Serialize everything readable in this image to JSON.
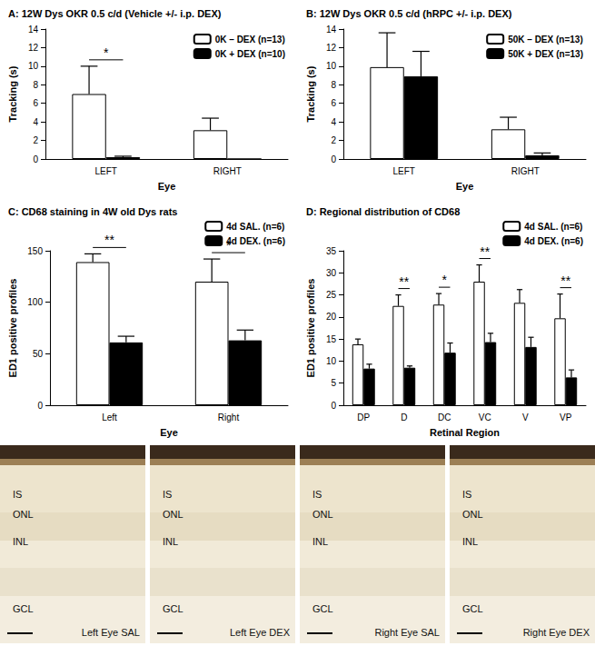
{
  "chart_data": [
    {
      "type": "bar",
      "title": "A: 12W Dys OKR 0.5 c/d (Vehicle +/- i.p. DEX)",
      "xlabel": "Eye",
      "ylabel": "Tracking (s)",
      "categories": [
        "LEFT",
        "RIGHT"
      ],
      "series": [
        {
          "name": "0K – DEX (n=13)",
          "color": "#ffffff",
          "values": [
            7.0,
            3.1
          ],
          "errors": [
            3.0,
            1.3
          ]
        },
        {
          "name": "0K + DEX (n=10)",
          "color": "#000000",
          "values": [
            0.2,
            0
          ],
          "errors": [
            0.1,
            0
          ]
        }
      ],
      "ylim": [
        0,
        14
      ],
      "yticks": [
        0,
        2,
        4,
        6,
        8,
        10,
        12,
        14
      ],
      "grid": false,
      "legend": "top-right",
      "annotations": [
        {
          "category": "LEFT",
          "text": "*"
        }
      ]
    },
    {
      "type": "bar",
      "title": "B: 12W Dys OKR 0.5 c/d (hRPC +/- i.p. DEX)",
      "xlabel": "Eye",
      "ylabel": "Tracking (s)",
      "categories": [
        "LEFT",
        "RIGHT"
      ],
      "series": [
        {
          "name": "50K – DEX (n=13)",
          "color": "#ffffff",
          "values": [
            9.9,
            3.2
          ],
          "errors": [
            3.7,
            1.3
          ]
        },
        {
          "name": "50K + DEX (n=13)",
          "color": "#000000",
          "values": [
            8.9,
            0.4
          ],
          "errors": [
            2.7,
            0.25
          ]
        }
      ],
      "ylim": [
        0,
        14
      ],
      "yticks": [
        0,
        2,
        4,
        6,
        8,
        10,
        12,
        14
      ],
      "grid": false,
      "legend": "top-right",
      "annotations": []
    },
    {
      "type": "bar",
      "title": "C: CD68 staining in 4W old Dys rats",
      "xlabel": "Eye",
      "ylabel": "ED1 positive profiles",
      "categories": [
        "Left",
        "Right"
      ],
      "series": [
        {
          "name": "4d SAL. (n=6)",
          "color": "#ffffff",
          "values": [
            139,
            120
          ],
          "errors": [
            8,
            22
          ]
        },
        {
          "name": "4d DEX. (n=6)",
          "color": "#000000",
          "values": [
            61,
            63
          ],
          "errors": [
            6,
            10
          ]
        }
      ],
      "ylim": [
        0,
        150
      ],
      "yticks": [
        0,
        50,
        100,
        150
      ],
      "grid": false,
      "legend": "top-right",
      "annotations": [
        {
          "category": "Left",
          "text": "**"
        },
        {
          "category": "Right",
          "text": "*"
        }
      ]
    },
    {
      "type": "bar",
      "title": "D: Regional distribution of CD68",
      "xlabel": "Retinal Region",
      "ylabel": "ED1 positive profiles",
      "categories": [
        "DP",
        "D",
        "DC",
        "VC",
        "V",
        "VP"
      ],
      "series": [
        {
          "name": "4d SAL. (n=6)",
          "color": "#ffffff",
          "values": [
            13.8,
            22.5,
            22.8,
            28.0,
            23.2,
            19.7
          ],
          "errors": [
            1.2,
            2.5,
            2.5,
            3.8,
            3.0,
            5.5
          ]
        },
        {
          "name": "4d DEX. (n=6)",
          "color": "#000000",
          "values": [
            8.3,
            8.5,
            11.9,
            14.3,
            13.2,
            6.3
          ],
          "errors": [
            1.0,
            0.4,
            2.2,
            2.0,
            2.2,
            1.7
          ]
        }
      ],
      "ylim": [
        0,
        35
      ],
      "yticks": [
        0,
        5,
        10,
        15,
        20,
        25,
        30,
        35
      ],
      "grid": false,
      "legend": "top-right",
      "annotations": [
        {
          "category": "D",
          "text": "**"
        },
        {
          "category": "DC",
          "text": "*"
        },
        {
          "category": "VC",
          "text": "**"
        },
        {
          "category": "VP",
          "text": "**"
        }
      ]
    }
  ],
  "micrographs": [
    {
      "labels": [
        "IS",
        "ONL",
        "INL",
        "GCL"
      ],
      "caption": "Left Eye SAL"
    },
    {
      "labels": [
        "IS",
        "ONL",
        "INL",
        "GCL"
      ],
      "caption": "Left Eye DEX"
    },
    {
      "labels": [
        "IS",
        "ONL",
        "INL",
        "GCL"
      ],
      "caption": "Right Eye SAL"
    },
    {
      "labels": [
        "IS",
        "ONL",
        "INL",
        "GCL"
      ],
      "caption": "Right Eye DEX"
    }
  ]
}
